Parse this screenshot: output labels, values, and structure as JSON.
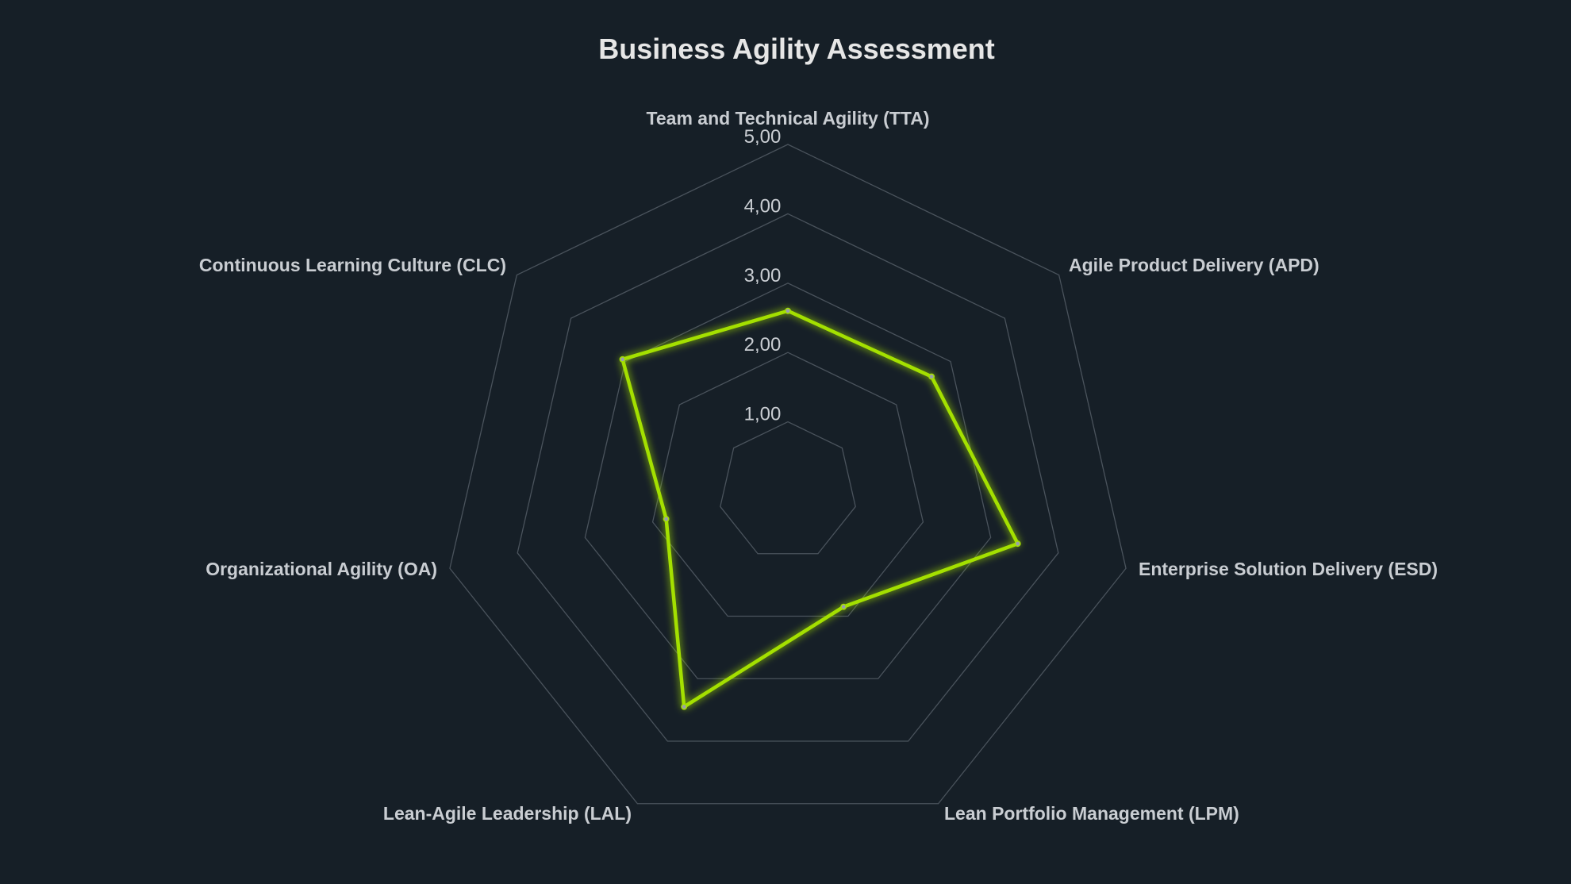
{
  "chart_data": {
    "type": "radar",
    "title": "Business Agility Assessment",
    "axes": [
      "Team and Technical Agility (TTA)",
      "Agile Product Delivery (APD)",
      "Enterprise Solution Delivery (ESD)",
      "Lean Portfolio Management (LPM)",
      "Lean-Agile Leadership (LAL)",
      "Organizational Agility (OA)",
      "Continuous Learning Culture (CLC)"
    ],
    "ticks": [
      "1,00",
      "2,00",
      "3,00",
      "4,00",
      "5,00"
    ],
    "range": [
      0,
      5
    ],
    "grid": true,
    "legend": "none",
    "series": [
      {
        "values": [
          2.6,
          2.65,
          3.4,
          1.85,
          3.45,
          1.8,
          3.05
        ],
        "color": "#a4e000"
      }
    ],
    "colors": {
      "background": "#161f27",
      "grid": "#4a535c",
      "text": "#c9cdd2",
      "title": "#e6e6e6",
      "marker": "#9aa1a8"
    }
  }
}
